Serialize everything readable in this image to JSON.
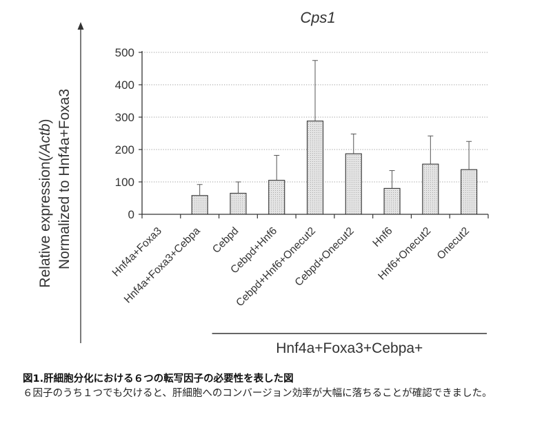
{
  "chart_data": {
    "type": "bar",
    "title": "Cps1",
    "ylabel_parts": [
      "Relative expression(",
      "/Actb",
      ")"
    ],
    "ylabel_line2": "Normalized to Hnf4a+Foxa3",
    "ylim": [
      0,
      500
    ],
    "yticks": [
      0,
      100,
      200,
      300,
      400,
      500
    ],
    "grid": true,
    "categories": [
      "Hnf4a+Foxa3",
      "Hnf4a+Foxa3+Cebpa",
      "Cebpd",
      "Cebpd+Hnf6",
      "Cebpd+Hnf6+Onecut2",
      "Cebpd+Onecut2",
      "Hnf6",
      "Hnf6+Onecut2",
      "Onecut2"
    ],
    "values": [
      0,
      58,
      65,
      105,
      288,
      187,
      80,
      155,
      138
    ],
    "error_upper": [
      0,
      92,
      100,
      182,
      475,
      248,
      135,
      242,
      225
    ],
    "group_label": "Hnf4a+Foxa3+Cebpa+",
    "group_range": [
      "Cebpd",
      "Onecut2"
    ],
    "bar_color": "#dcdcdc",
    "axis_color": "#333333"
  },
  "caption": {
    "title": "図1.肝細胞分化における６つの転写因子の必要性を表した図",
    "body": "６因子のうち１つでも欠けると、肝細胞へのコンバージョン効率が大幅に落ちることが確認できました。"
  }
}
